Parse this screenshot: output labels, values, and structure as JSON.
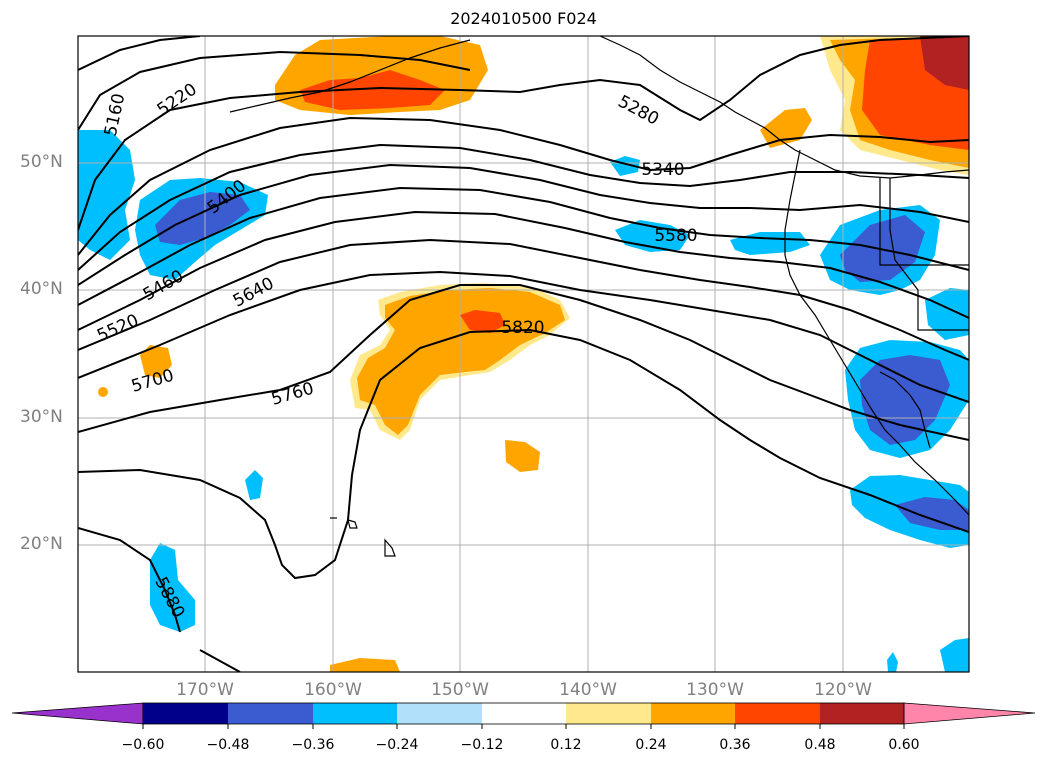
{
  "title": "2024010500 F024",
  "lat_labels": [
    "50°N",
    "40°N",
    "30°N",
    "20°N"
  ],
  "lon_labels": [
    "170°W",
    "160°W",
    "150°W",
    "140°W",
    "130°W",
    "120°W"
  ],
  "contour_labels": [
    "5160",
    "5220",
    "5280",
    "5340",
    "5400",
    "5460",
    "5520",
    "5580",
    "5640",
    "5700",
    "5760",
    "5820",
    "5880"
  ],
  "colorbar": {
    "ticks": [
      "−0.60",
      "−0.48",
      "−0.36",
      "−0.24",
      "−0.12",
      "0.12",
      "0.24",
      "0.36",
      "0.48",
      "0.60"
    ],
    "colors": [
      "#9932cc",
      "#00008b",
      "#3b5bd1",
      "#00bfff",
      "#b0e0fa",
      "#ffffff",
      "#ffe98c",
      "#ffa500",
      "#ff4500",
      "#b22222",
      "#ff85aa"
    ]
  }
}
